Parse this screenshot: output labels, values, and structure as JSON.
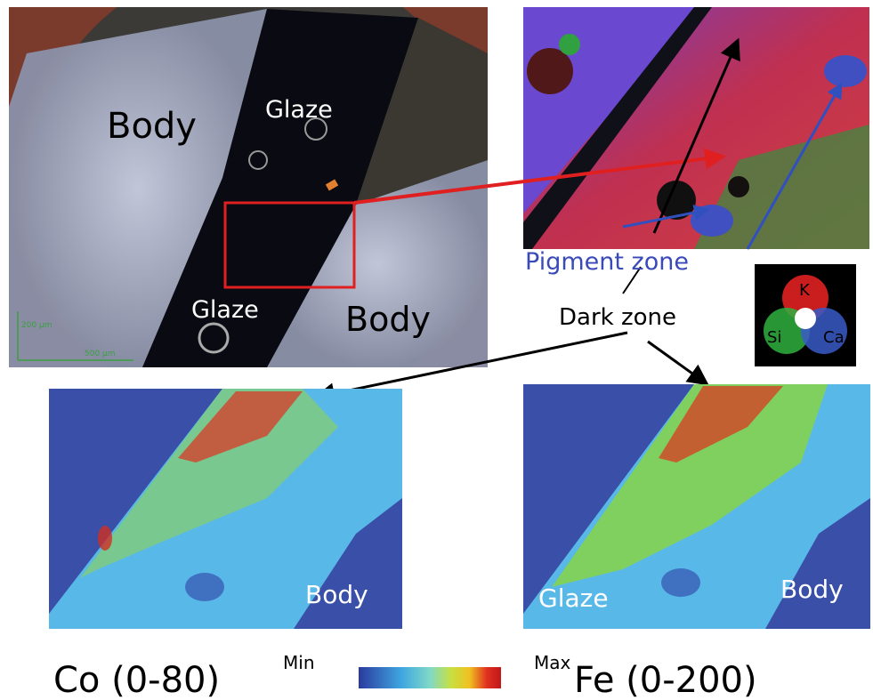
{
  "optical_image": {
    "labels": [
      "Body",
      "Glaze",
      "Glaze",
      "Body"
    ],
    "scale_bars": [
      "200 µm",
      "500 µm"
    ]
  },
  "zoom_image": {
    "labels": [
      "Pigment zone",
      "Dark zone"
    ]
  },
  "element_legend": [
    "K",
    "Si",
    "Ca"
  ],
  "co_map": {
    "labels": [
      "Body"
    ]
  },
  "fe_map": {
    "labels": [
      "Glaze",
      "Body"
    ]
  },
  "colorbar": {
    "left_title": "Co (0-80)",
    "min_label": "Min",
    "max_label": "Max",
    "right_title": "Fe (0-200)"
  }
}
